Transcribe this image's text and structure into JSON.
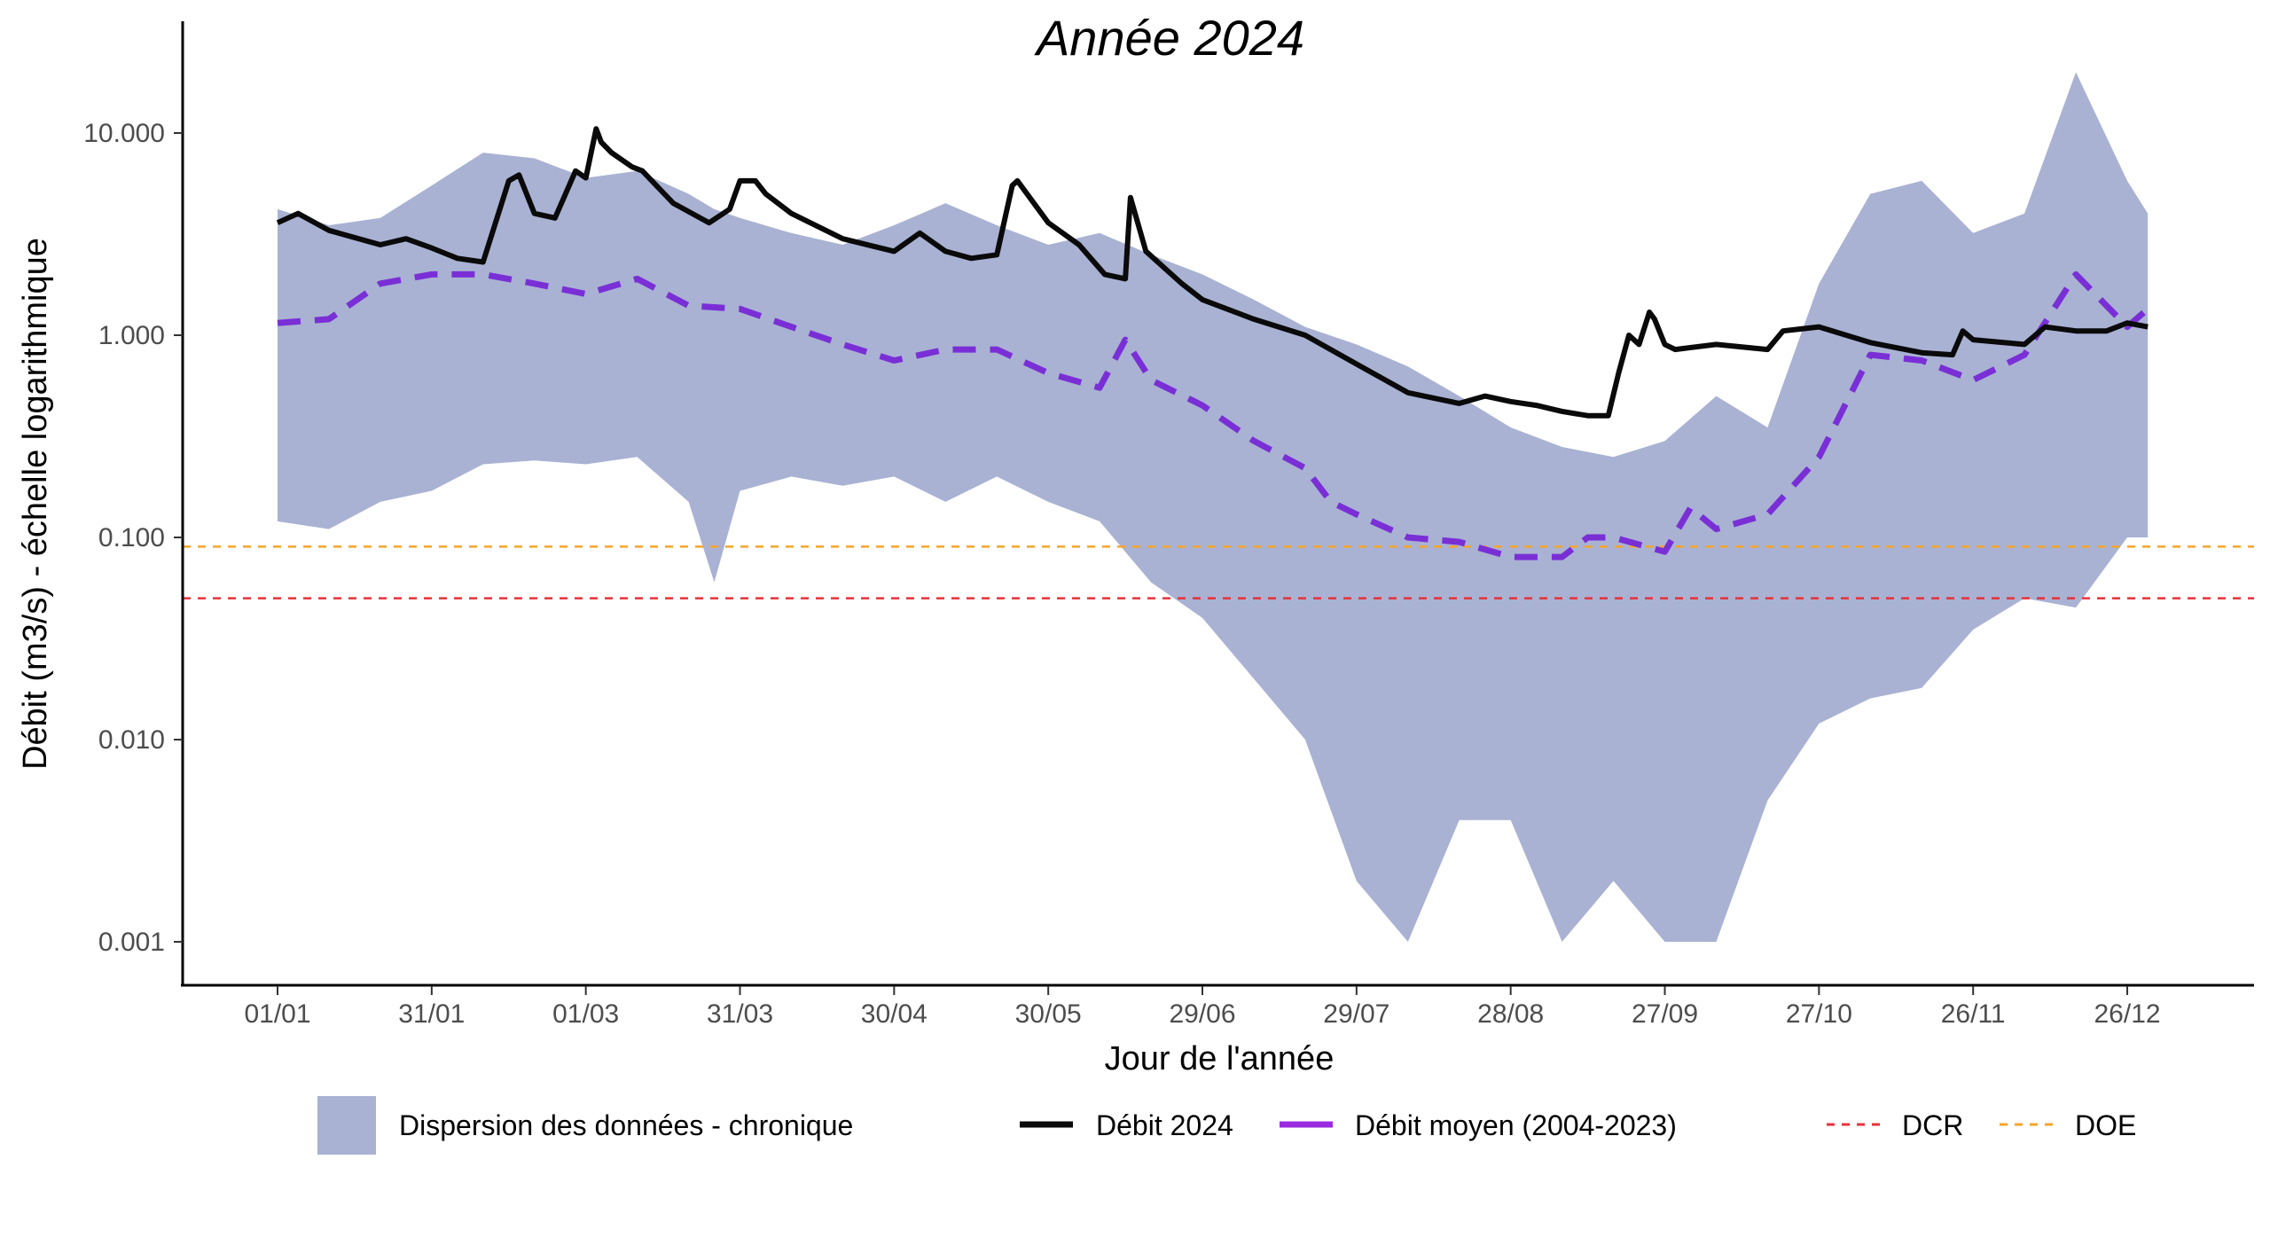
{
  "chart_data": {
    "type": "area",
    "title": "Année 2024",
    "xlabel": "Jour de l'année",
    "ylabel": "Débit (m3/s) - échelle logarithmique",
    "y_scale": "log",
    "ylim": [
      0.0006,
      30
    ],
    "xlim": [
      "2024-01-01",
      "2024-12-31"
    ],
    "grid": false,
    "legend_position": "bottom",
    "x_ticks": [
      "01/01",
      "31/01",
      "01/03",
      "31/03",
      "30/04",
      "30/05",
      "29/06",
      "29/07",
      "28/08",
      "27/09",
      "27/10",
      "26/11",
      "26/12"
    ],
    "y_ticks": [
      {
        "value": 10,
        "label": "10.000"
      },
      {
        "value": 1,
        "label": "1.000"
      },
      {
        "value": 0.1,
        "label": "0.100"
      },
      {
        "value": 0.01,
        "label": "0.010"
      },
      {
        "value": 0.001,
        "label": "0.001"
      }
    ],
    "reference_lines": [
      {
        "name": "DCR",
        "value": 0.05,
        "color": "#e8313a",
        "style": "dashed"
      },
      {
        "name": "DOE",
        "value": 0.09,
        "color": "#f4a52a",
        "style": "dashed"
      }
    ],
    "band": {
      "name": "Dispersion des données - chronique",
      "color": "#a9b2d3",
      "x": [
        "01/01",
        "11/01",
        "21/01",
        "31/01",
        "10/02",
        "20/02",
        "01/03",
        "11/03",
        "21/03",
        "26/03",
        "31/03",
        "10/04",
        "20/04",
        "30/04",
        "10/05",
        "20/05",
        "30/05",
        "09/06",
        "19/06",
        "29/06",
        "09/07",
        "19/07",
        "29/07",
        "08/08",
        "18/08",
        "28/08",
        "07/09",
        "17/09",
        "27/09",
        "07/10",
        "17/10",
        "27/10",
        "06/11",
        "16/11",
        "26/11",
        "06/12",
        "16/12",
        "26/12",
        "30/12"
      ],
      "upper": [
        4.2,
        3.5,
        3.8,
        5.5,
        8.0,
        7.5,
        6.0,
        6.5,
        5.0,
        4.2,
        3.8,
        3.2,
        2.8,
        3.5,
        4.5,
        3.5,
        2.8,
        3.2,
        2.5,
        2.0,
        1.5,
        1.1,
        0.9,
        0.7,
        0.5,
        0.35,
        0.28,
        0.25,
        0.3,
        0.5,
        0.35,
        1.8,
        5.0,
        5.8,
        3.2,
        4.0,
        20.0,
        5.8,
        4.0
      ],
      "lower": [
        0.12,
        0.11,
        0.15,
        0.17,
        0.23,
        0.24,
        0.23,
        0.25,
        0.15,
        0.06,
        0.17,
        0.2,
        0.18,
        0.2,
        0.15,
        0.2,
        0.15,
        0.12,
        0.06,
        0.04,
        0.02,
        0.01,
        0.002,
        0.001,
        0.004,
        0.004,
        0.001,
        0.002,
        0.001,
        0.001,
        0.005,
        0.012,
        0.016,
        0.018,
        0.035,
        0.05,
        0.045,
        0.1,
        0.1
      ]
    },
    "series": [
      {
        "name": "Débit 2024",
        "color": "#0a0a0a",
        "style": "solid",
        "x": [
          "01/01",
          "05/01",
          "11/01",
          "21/01",
          "26/01",
          "31/01",
          "05/02",
          "10/02",
          "15/02",
          "17/02",
          "20/02",
          "24/02",
          "28/02",
          "01/03",
          "03/03",
          "04/03",
          "06/03",
          "10/03",
          "12/03",
          "18/03",
          "25/03",
          "29/03",
          "31/03",
          "03/04",
          "05/04",
          "10/04",
          "20/04",
          "30/04",
          "05/05",
          "10/05",
          "15/05",
          "20/05",
          "23/05",
          "24/05",
          "30/05",
          "05/06",
          "10/06",
          "14/06",
          "15/06",
          "18/06",
          "25/06",
          "29/06",
          "09/07",
          "19/07",
          "29/07",
          "08/08",
          "18/08",
          "23/08",
          "28/08",
          "02/09",
          "07/09",
          "12/09",
          "16/09",
          "18/09",
          "20/09",
          "22/09",
          "24/09",
          "25/09",
          "27/09",
          "29/09",
          "07/10",
          "17/10",
          "20/10",
          "27/10",
          "06/11",
          "16/11",
          "22/11",
          "24/11",
          "26/11",
          "06/12",
          "10/12",
          "16/12",
          "22/12",
          "26/12",
          "30/12"
        ],
        "values": [
          3.6,
          4.0,
          3.3,
          2.8,
          3.0,
          2.7,
          2.4,
          2.3,
          5.8,
          6.2,
          4.0,
          3.8,
          6.5,
          6.0,
          10.5,
          9.0,
          8.0,
          6.8,
          6.5,
          4.5,
          3.6,
          4.2,
          5.8,
          5.8,
          5.0,
          4.0,
          3.0,
          2.6,
          3.2,
          2.6,
          2.4,
          2.5,
          5.5,
          5.8,
          3.6,
          2.8,
          2.0,
          1.9,
          4.8,
          2.6,
          1.8,
          1.5,
          1.2,
          1.0,
          0.72,
          0.52,
          0.46,
          0.5,
          0.47,
          0.45,
          0.42,
          0.4,
          0.4,
          0.65,
          1.0,
          0.9,
          1.3,
          1.2,
          0.9,
          0.85,
          0.9,
          0.85,
          1.05,
          1.1,
          0.92,
          0.82,
          0.8,
          1.05,
          0.95,
          0.9,
          1.1,
          1.05,
          1.05,
          1.15,
          1.1
        ]
      },
      {
        "name": "Débit moyen (2004-2023)",
        "color": "#7a2fd6",
        "style": "dashed",
        "x": [
          "01/01",
          "11/01",
          "21/01",
          "31/01",
          "10/02",
          "20/02",
          "01/03",
          "11/03",
          "21/03",
          "31/03",
          "10/04",
          "20/04",
          "30/04",
          "10/05",
          "20/05",
          "30/05",
          "09/06",
          "14/06",
          "19/06",
          "29/06",
          "09/07",
          "19/07",
          "24/07",
          "29/07",
          "08/08",
          "18/08",
          "28/08",
          "07/09",
          "12/09",
          "17/09",
          "27/09",
          "02/10",
          "07/10",
          "17/10",
          "27/10",
          "06/11",
          "16/11",
          "26/11",
          "06/12",
          "16/12",
          "26/12",
          "30/12"
        ],
        "values": [
          1.15,
          1.2,
          1.8,
          2.0,
          2.0,
          1.8,
          1.6,
          1.9,
          1.4,
          1.35,
          1.1,
          0.9,
          0.75,
          0.85,
          0.85,
          0.65,
          0.55,
          0.95,
          0.6,
          0.45,
          0.3,
          0.22,
          0.15,
          0.13,
          0.1,
          0.095,
          0.08,
          0.08,
          0.1,
          0.1,
          0.085,
          0.14,
          0.11,
          0.13,
          0.25,
          0.8,
          0.75,
          0.6,
          0.8,
          2.0,
          1.1,
          1.35
        ]
      }
    ],
    "legend": {
      "band_label": "Dispersion des données - chronique",
      "series_2024_label": "Débit 2024",
      "series_mean_label": "Débit moyen (2004-2023)",
      "dcr_label": "DCR",
      "doe_label": "DOE"
    }
  }
}
